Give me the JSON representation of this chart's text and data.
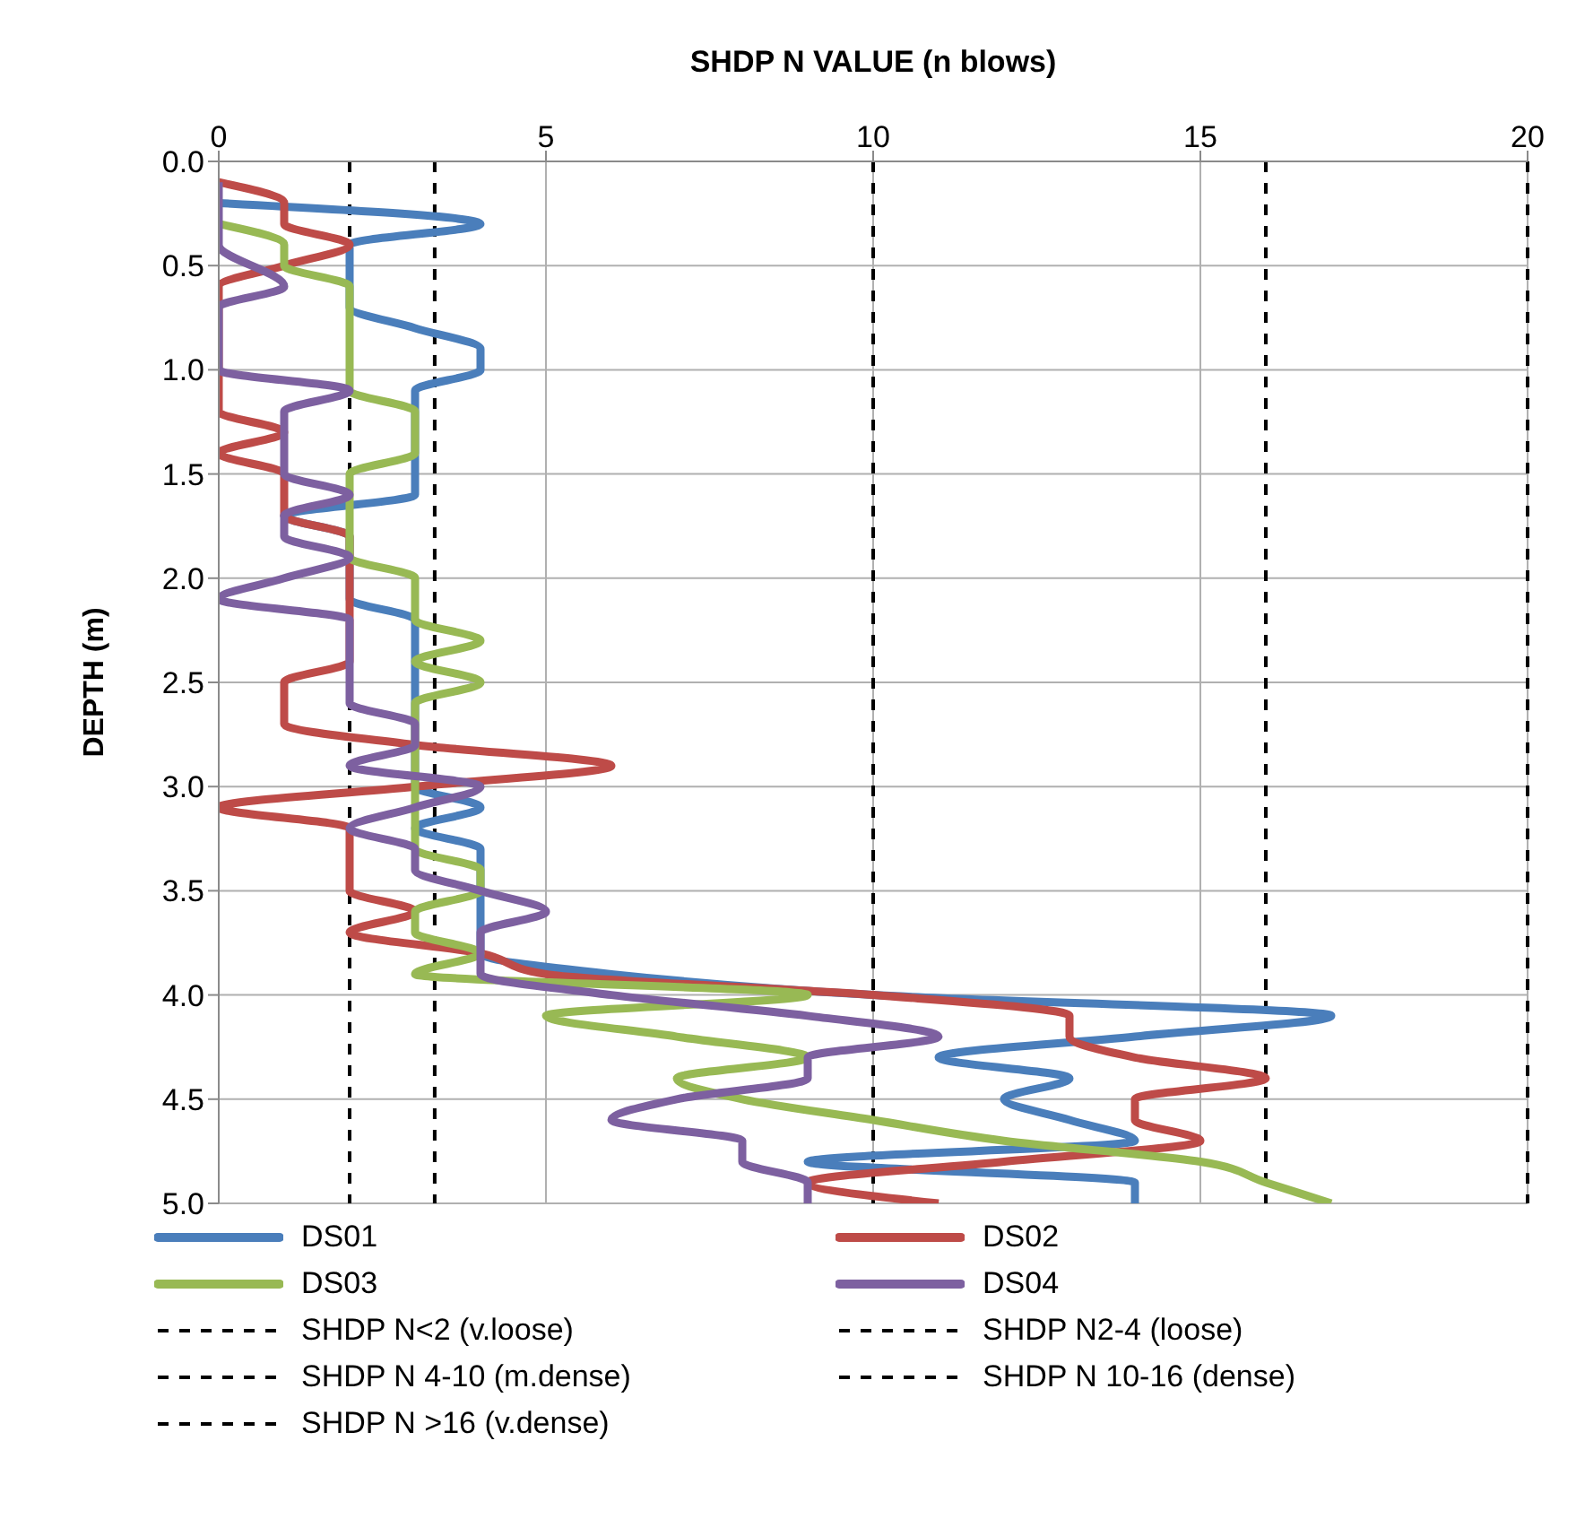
{
  "chart_data": {
    "type": "line",
    "xlabel": "SHDP N VALUE (n blows)",
    "ylabel": "DEPTH (m)",
    "xlim": [
      0,
      20
    ],
    "xticks": [
      0,
      5,
      10,
      15,
      20
    ],
    "ylim": [
      5,
      0
    ],
    "yticks": [
      {
        "value": 0,
        "label": "0.0"
      },
      {
        "value": 0.5,
        "label": "0.5"
      },
      {
        "value": 1,
        "label": "1.0"
      },
      {
        "value": 1.5,
        "label": "1.5"
      },
      {
        "value": 2,
        "label": "2.0"
      },
      {
        "value": 2.5,
        "label": "2.5"
      },
      {
        "value": 3,
        "label": "3.0"
      },
      {
        "value": 3.5,
        "label": "3.5"
      },
      {
        "value": 4,
        "label": "4.0"
      },
      {
        "value": 4.5,
        "label": "4.5"
      },
      {
        "value": 5,
        "label": "5.0"
      }
    ],
    "grid": true,
    "legend": "bottom",
    "marker": "none",
    "line_style": "solid",
    "series": [
      {
        "name": "DS01",
        "color": "#4a7ebb",
        "x": [
          0,
          4,
          2,
          2,
          2,
          2,
          3,
          4,
          4,
          3,
          3,
          3,
          3,
          3,
          3,
          1,
          2,
          2,
          2,
          2,
          3,
          3,
          3,
          3,
          3,
          3,
          3,
          3,
          3,
          4,
          3,
          4,
          4,
          4,
          4,
          4,
          4,
          6,
          10,
          17,
          14,
          11,
          13,
          12,
          13,
          14,
          9,
          14,
          14
        ],
        "values": [
          0.2,
          0.3,
          0.4,
          0.5,
          0.6,
          0.7,
          0.8,
          0.9,
          1.0,
          1.1,
          1.2,
          1.3,
          1.4,
          1.5,
          1.6,
          1.7,
          1.8,
          1.9,
          2.0,
          2.1,
          2.2,
          2.3,
          2.4,
          2.5,
          2.6,
          2.7,
          2.8,
          2.9,
          3.0,
          3.1,
          3.2,
          3.3,
          3.4,
          3.5,
          3.6,
          3.7,
          3.8,
          3.9,
          4.0,
          4.1,
          4.2,
          4.3,
          4.4,
          4.5,
          4.6,
          4.7,
          4.8,
          4.9,
          5.0
        ]
      },
      {
        "name": "DS02",
        "color": "#be4b48",
        "x": [
          0,
          1,
          1,
          2,
          1,
          0,
          0,
          0,
          0,
          0,
          0,
          0,
          1,
          0,
          1,
          1,
          1,
          2,
          2,
          2,
          2,
          2,
          2,
          2,
          1,
          1,
          1,
          3,
          6,
          3,
          0,
          2,
          2,
          2,
          2,
          3,
          2,
          4,
          5,
          10,
          13,
          13,
          14,
          16,
          14,
          14,
          15,
          12,
          9,
          11
        ],
        "values": [
          0.1,
          0.2,
          0.3,
          0.4,
          0.5,
          0.6,
          0.7,
          0.8,
          0.9,
          1.0,
          1.1,
          1.2,
          1.3,
          1.4,
          1.5,
          1.6,
          1.7,
          1.8,
          1.9,
          2.0,
          2.1,
          2.2,
          2.3,
          2.4,
          2.5,
          2.6,
          2.7,
          2.8,
          2.9,
          3.0,
          3.1,
          3.2,
          3.3,
          3.4,
          3.5,
          3.6,
          3.7,
          3.8,
          3.9,
          4.0,
          4.1,
          4.2,
          4.3,
          4.4,
          4.5,
          4.6,
          4.7,
          4.8,
          4.9,
          5.0
        ]
      },
      {
        "name": "DS03",
        "color": "#98b954",
        "x": [
          0,
          1,
          1,
          2,
          2,
          2,
          2,
          2,
          2,
          3,
          3,
          3,
          2,
          2,
          2,
          2,
          2,
          3,
          3,
          3,
          4,
          3,
          4,
          3,
          3,
          3,
          3,
          3,
          3,
          3,
          3,
          4,
          4,
          3,
          3,
          4,
          3,
          9,
          5,
          7,
          9,
          7,
          8,
          10,
          12,
          15,
          16,
          17
        ],
        "values": [
          0.3,
          0.4,
          0.5,
          0.6,
          0.7,
          0.8,
          0.9,
          1.0,
          1.1,
          1.2,
          1.3,
          1.4,
          1.5,
          1.6,
          1.7,
          1.8,
          1.9,
          2.0,
          2.1,
          2.2,
          2.3,
          2.4,
          2.5,
          2.6,
          2.7,
          2.8,
          2.9,
          3.0,
          3.1,
          3.2,
          3.3,
          3.4,
          3.5,
          3.6,
          3.7,
          3.8,
          3.9,
          4.0,
          4.1,
          4.2,
          4.3,
          4.4,
          4.5,
          4.6,
          4.7,
          4.8,
          4.9,
          5.0
        ]
      },
      {
        "name": "DS04",
        "color": "#7d60a0",
        "x": [
          0,
          0,
          0,
          0,
          1,
          0,
          0,
          0,
          0,
          2,
          1,
          1,
          1,
          1,
          2,
          1,
          1,
          2,
          1,
          0,
          2,
          2,
          2,
          2,
          2,
          3,
          3,
          2,
          4,
          3,
          2,
          3,
          3,
          4,
          5,
          4,
          4,
          4,
          6,
          9,
          11,
          9,
          9,
          7,
          6,
          8,
          8,
          9,
          9
        ],
        "values": [
          0.1,
          0.2,
          0.3,
          0.4,
          0.6,
          0.7,
          0.8,
          0.9,
          1.0,
          1.1,
          1.2,
          1.3,
          1.4,
          1.5,
          1.6,
          1.7,
          1.8,
          1.9,
          2.0,
          2.1,
          2.2,
          2.3,
          2.4,
          2.5,
          2.6,
          2.7,
          2.8,
          2.9,
          3.0,
          3.1,
          3.2,
          3.3,
          3.4,
          3.5,
          3.6,
          3.7,
          3.8,
          3.9,
          4.0,
          4.1,
          4.2,
          4.3,
          4.4,
          4.5,
          4.6,
          4.7,
          4.8,
          4.9,
          5.0
        ]
      }
    ],
    "ref_lines": [
      {
        "axis": "x",
        "value": 2,
        "label": "SHDP N<2 (v.loose)",
        "color": "#000000",
        "line_style": "dashed"
      },
      {
        "axis": "x",
        "value": 3.3,
        "label": "SHDP N2-4 (loose)",
        "color": "#000000",
        "line_style": "dashed"
      },
      {
        "axis": "x",
        "value": 10,
        "label": "SHDP N 4-10 (m.dense)",
        "color": "#000000",
        "line_style": "dashed"
      },
      {
        "axis": "x",
        "value": 16,
        "label": "SHDP N 10-16 (dense)",
        "color": "#000000",
        "line_style": "dashed"
      },
      {
        "axis": "x",
        "value": 20,
        "label": "SHDP N >16 (v.dense)",
        "color": "#000000",
        "line_style": "dashed"
      }
    ]
  }
}
